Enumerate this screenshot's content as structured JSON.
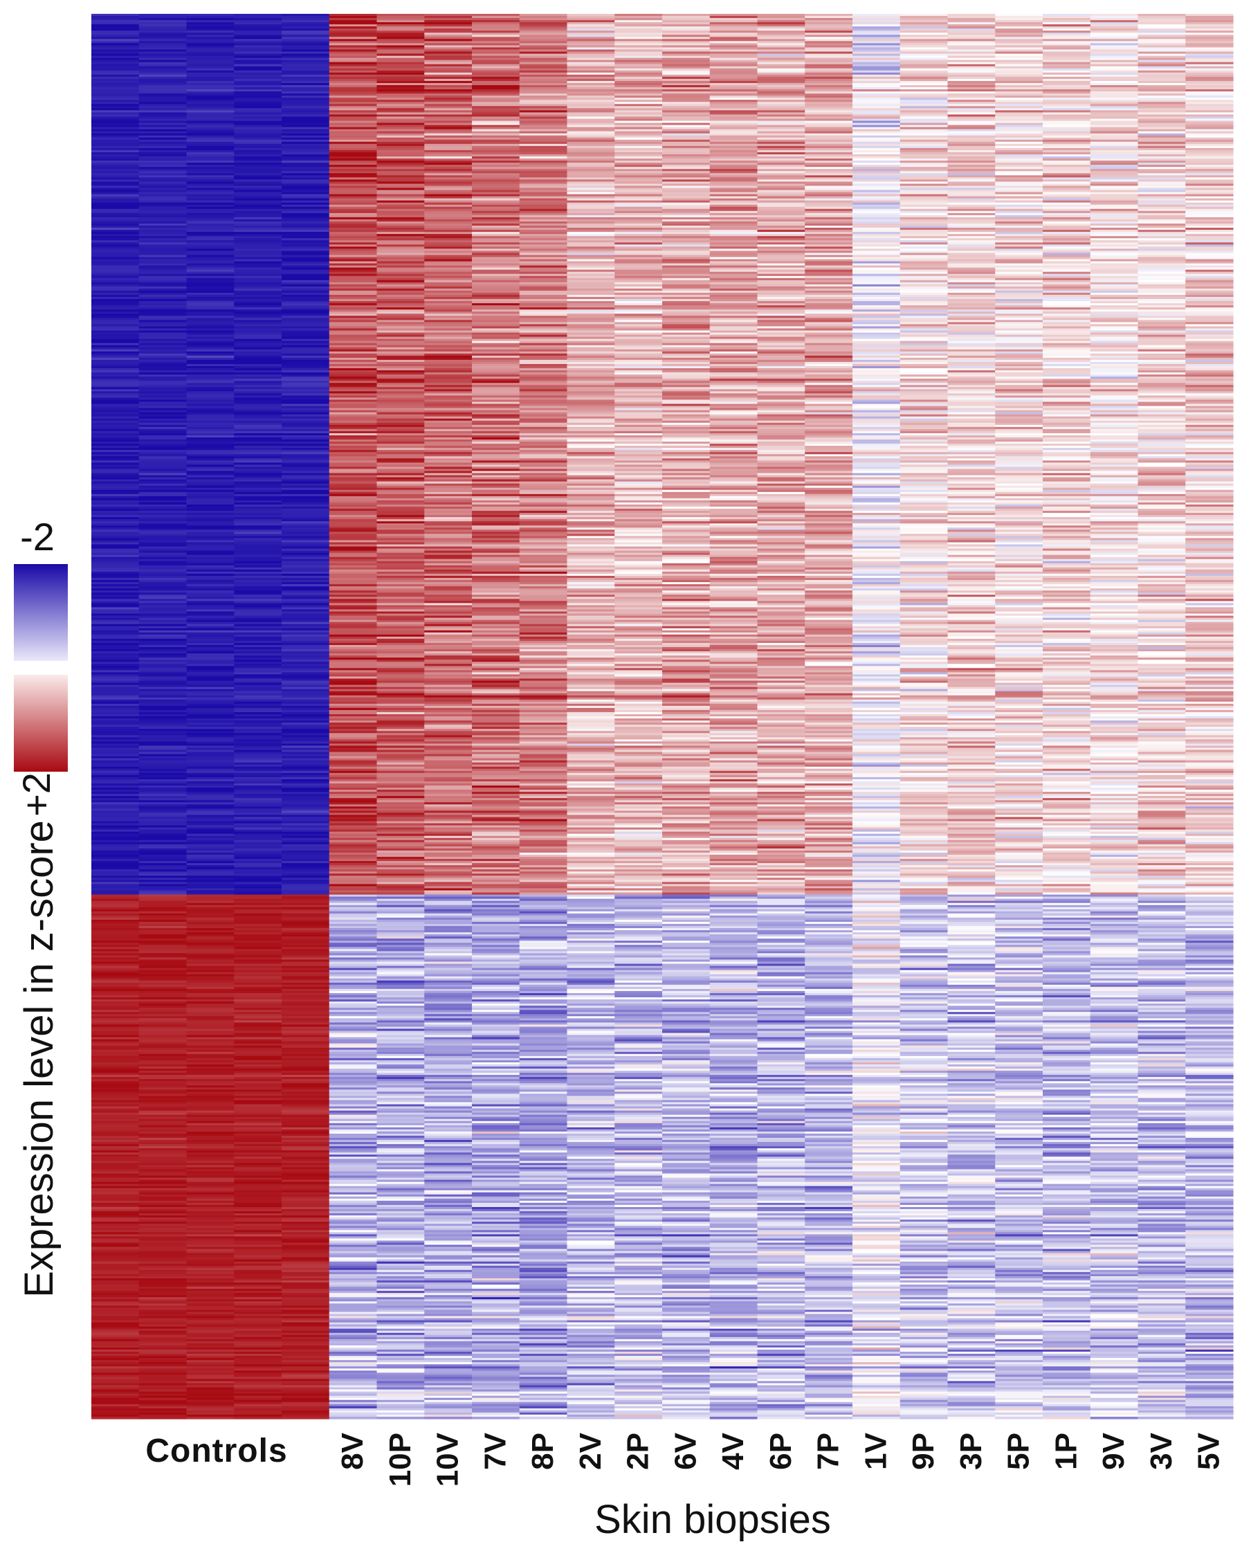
{
  "chart_data": {
    "type": "heatmap",
    "ylabel": "Expression level in z-score",
    "xlabel": "Skin biopsies",
    "colorbar": {
      "min_label": "-2",
      "max_label": "+2",
      "range": [
        -2,
        2
      ],
      "low_color": "#1a0aa8",
      "mid_color": "#ffffff",
      "high_color": "#a80a12"
    },
    "control_group_label": "Controls",
    "control_columns": 5,
    "biopsy_columns": [
      "8V",
      "10P",
      "10V",
      "7V",
      "8P",
      "2V",
      "2P",
      "6V",
      "4V",
      "6P",
      "7P",
      "1V",
      "9P",
      "3P",
      "5P",
      "1P",
      "9V",
      "3V",
      "5V"
    ],
    "gene_clusters": [
      {
        "rows": 420,
        "controls_mean_z": -1.85,
        "biopsy_mean_z": [
          1.45,
          1.35,
          1.25,
          1.15,
          1.05,
          0.65,
          0.6,
          0.7,
          0.75,
          0.7,
          0.7,
          -0.1,
          0.3,
          0.4,
          0.3,
          0.35,
          0.25,
          0.35,
          0.4
        ]
      },
      {
        "rows": 250,
        "controls_mean_z": 1.85,
        "biopsy_mean_z": [
          -0.6,
          -0.65,
          -0.7,
          -0.65,
          -0.7,
          -0.55,
          -0.5,
          -0.55,
          -0.6,
          -0.55,
          -0.55,
          -0.1,
          -0.45,
          -0.45,
          -0.45,
          -0.5,
          -0.4,
          -0.5,
          -0.55
        ]
      }
    ]
  }
}
